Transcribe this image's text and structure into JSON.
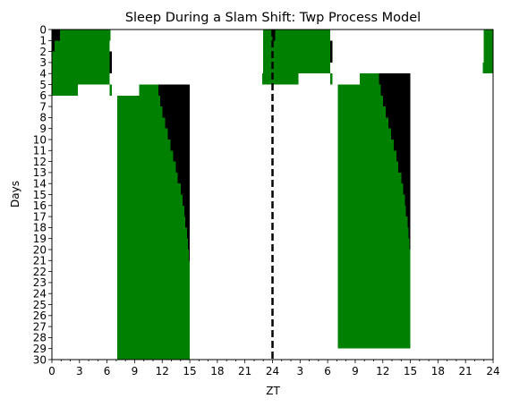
{
  "chart_data": {
    "type": "heatmap",
    "title": "Sleep During a Slam Shift: Twp Process Model",
    "xlabel": "ZT",
    "ylabel": "Days",
    "x_ticks": [
      "0",
      "3",
      "6",
      "9",
      "12",
      "15",
      "18",
      "21",
      "24",
      "3",
      "6",
      "9",
      "12",
      "15",
      "18",
      "21",
      "24"
    ],
    "y_ticks": [
      "0",
      "1",
      "2",
      "3",
      "4",
      "5",
      "6",
      "7",
      "8",
      "9",
      "10",
      "11",
      "12",
      "13",
      "14",
      "15",
      "16",
      "17",
      "18",
      "19",
      "20",
      "21",
      "22",
      "23",
      "24",
      "25",
      "26",
      "27",
      "28",
      "29",
      "30"
    ],
    "xlim": [
      0,
      48
    ],
    "ylim": [
      0,
      30
    ],
    "double_plotted": true,
    "divider_at": 24,
    "colors": {
      "sleep": "#008000",
      "dark": "#000000",
      "background": "#ffffff",
      "divider": "#000000"
    },
    "series": [
      {
        "name": "sleep",
        "color": "#008000",
        "intervals": [
          {
            "day": 0,
            "start": 23.0,
            "end": 24.0
          },
          {
            "day": 0,
            "start": 0.9,
            "end": 6.4
          },
          {
            "day": 1,
            "start": 23.0,
            "end": 24.0
          },
          {
            "day": 1,
            "start": 0.3,
            "end": 6.3
          },
          {
            "day": 2,
            "start": 23.0,
            "end": 24.0
          },
          {
            "day": 2,
            "start": 0.0,
            "end": 6.3
          },
          {
            "day": 3,
            "start": 23.0,
            "end": 24.0
          },
          {
            "day": 3,
            "start": 0.0,
            "end": 6.3
          },
          {
            "day": 4,
            "start": 22.9,
            "end": 24.0
          },
          {
            "day": 4,
            "start": 0.0,
            "end": 6.3
          },
          {
            "day": 5,
            "start": 0.0,
            "end": 2.8
          },
          {
            "day": 5,
            "start": 6.3,
            "end": 6.5
          },
          {
            "day": 5,
            "start": 9.5,
            "end": 11.6
          },
          {
            "day": 6,
            "start": 7.1,
            "end": 11.8
          },
          {
            "day": 7,
            "start": 7.1,
            "end": 12.0
          },
          {
            "day": 8,
            "start": 7.1,
            "end": 12.3
          },
          {
            "day": 9,
            "start": 7.1,
            "end": 12.6
          },
          {
            "day": 10,
            "start": 7.1,
            "end": 12.9
          },
          {
            "day": 11,
            "start": 7.1,
            "end": 13.2
          },
          {
            "day": 12,
            "start": 7.1,
            "end": 13.5
          },
          {
            "day": 13,
            "start": 7.1,
            "end": 13.7
          },
          {
            "day": 14,
            "start": 7.1,
            "end": 14.0
          },
          {
            "day": 15,
            "start": 7.1,
            "end": 14.2
          },
          {
            "day": 16,
            "start": 7.1,
            "end": 14.4
          },
          {
            "day": 17,
            "start": 7.1,
            "end": 14.5
          },
          {
            "day": 18,
            "start": 7.1,
            "end": 14.7
          },
          {
            "day": 19,
            "start": 7.1,
            "end": 14.8
          },
          {
            "day": 20,
            "start": 7.1,
            "end": 14.9
          },
          {
            "day": 21,
            "start": 7.1,
            "end": 15.0
          },
          {
            "day": 22,
            "start": 7.1,
            "end": 15.0
          },
          {
            "day": 23,
            "start": 7.1,
            "end": 15.0
          },
          {
            "day": 24,
            "start": 7.1,
            "end": 15.0
          },
          {
            "day": 25,
            "start": 7.1,
            "end": 15.0
          },
          {
            "day": 26,
            "start": 7.1,
            "end": 15.0
          },
          {
            "day": 27,
            "start": 7.1,
            "end": 15.0
          },
          {
            "day": 28,
            "start": 7.1,
            "end": 15.0
          },
          {
            "day": 29,
            "start": 7.1,
            "end": 15.0
          }
        ]
      },
      {
        "name": "dark",
        "color": "#000000",
        "intervals": [
          {
            "day": 0,
            "start": 0.0,
            "end": 0.9
          },
          {
            "day": 1,
            "start": 0.0,
            "end": 0.3
          },
          {
            "day": 2,
            "start": 6.3,
            "end": 6.5
          },
          {
            "day": 3,
            "start": 6.3,
            "end": 6.5
          },
          {
            "day": 5,
            "start": 11.6,
            "end": 15.0
          },
          {
            "day": 6,
            "start": 11.8,
            "end": 15.0
          },
          {
            "day": 7,
            "start": 12.0,
            "end": 15.0
          },
          {
            "day": 8,
            "start": 12.3,
            "end": 15.0
          },
          {
            "day": 9,
            "start": 12.6,
            "end": 15.0
          },
          {
            "day": 10,
            "start": 12.9,
            "end": 15.0
          },
          {
            "day": 11,
            "start": 13.2,
            "end": 15.0
          },
          {
            "day": 12,
            "start": 13.5,
            "end": 15.0
          },
          {
            "day": 13,
            "start": 13.7,
            "end": 15.0
          },
          {
            "day": 14,
            "start": 14.0,
            "end": 15.0
          },
          {
            "day": 15,
            "start": 14.2,
            "end": 15.0
          },
          {
            "day": 16,
            "start": 14.4,
            "end": 15.0
          },
          {
            "day": 17,
            "start": 14.5,
            "end": 15.0
          },
          {
            "day": 18,
            "start": 14.7,
            "end": 15.0
          },
          {
            "day": 19,
            "start": 14.8,
            "end": 15.0
          },
          {
            "day": 20,
            "start": 14.9,
            "end": 15.0
          }
        ]
      }
    ]
  }
}
